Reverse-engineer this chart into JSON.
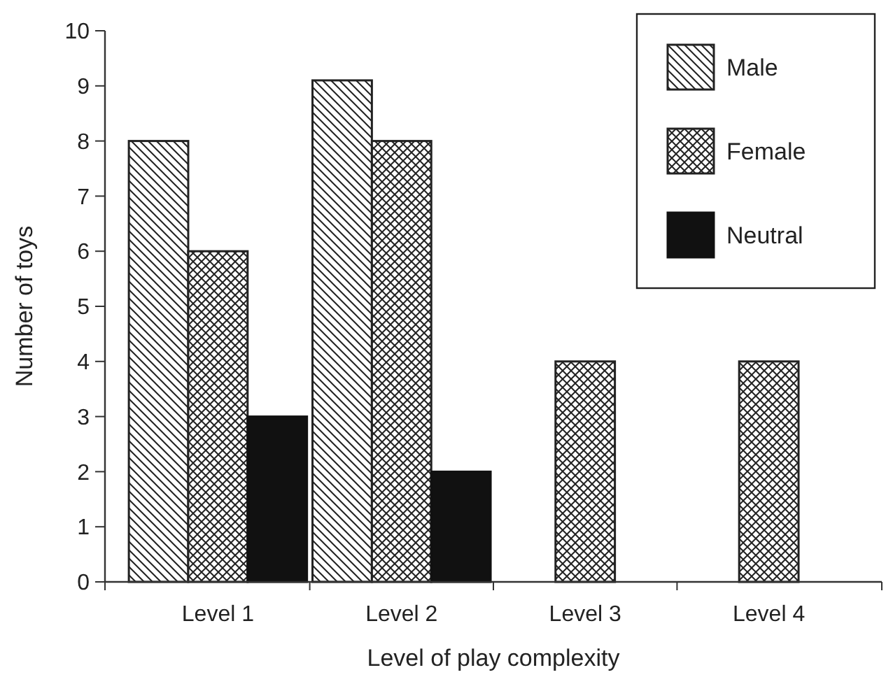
{
  "chart_data": {
    "type": "bar",
    "xlabel": "Level of play complexity",
    "ylabel": "Number of toys",
    "categories": [
      "Level 1",
      "Level 2",
      "Level 3",
      "Level 4"
    ],
    "series": [
      {
        "name": "Male",
        "color": "#222222",
        "values": [
          8,
          9.1,
          null,
          null
        ]
      },
      {
        "name": "Female",
        "color": "#222222",
        "values": [
          6,
          8,
          4,
          4
        ]
      },
      {
        "name": "Neutral",
        "color": "#111111",
        "values": [
          3,
          2,
          null,
          null
        ]
      }
    ],
    "ylim": [
      0,
      10
    ],
    "yticks": [
      0,
      1,
      2,
      3,
      4,
      5,
      6,
      7,
      8,
      9,
      10
    ],
    "grid": false,
    "legend": "top right"
  }
}
